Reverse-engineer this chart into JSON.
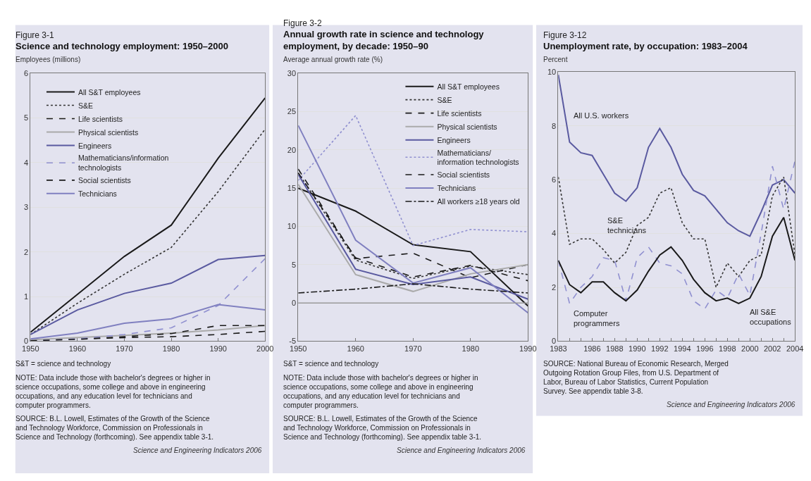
{
  "chart_data": [
    {
      "type": "line",
      "subtitle": "Figure 3-1",
      "title": "Science and technology employment: 1950–2000",
      "ylabel": "Employees (millions)",
      "x": [
        1950,
        1960,
        1970,
        1980,
        1990,
        2000
      ],
      "xlim": [
        1950,
        2000
      ],
      "xticks": [
        1950,
        1960,
        1970,
        1980,
        1990,
        2000
      ],
      "ylim": [
        0,
        6
      ],
      "yticks": [
        0,
        1,
        2,
        3,
        4,
        5,
        6
      ],
      "grid": "y",
      "legend": "top left",
      "marker": "none",
      "series": [
        {
          "name": "All S&T employees",
          "color": "#1a1a1a",
          "line_style": "solid",
          "values": [
            0.2,
            1.05,
            1.9,
            2.6,
            4.1,
            5.45
          ]
        },
        {
          "name": "S&E",
          "color": "#333333",
          "line_style": "dotted",
          "values": [
            0.15,
            0.85,
            1.5,
            2.1,
            3.35,
            4.75
          ]
        },
        {
          "name": "Life scientists",
          "color": "#1a1a1a",
          "line_style": "dashed",
          "values": [
            0.02,
            0.05,
            0.08,
            0.1,
            0.15,
            0.22
          ]
        },
        {
          "name": "Physical scientists",
          "color": "#aaaaaa",
          "line_style": "solid",
          "values": [
            0.03,
            0.08,
            0.13,
            0.18,
            0.25,
            0.35
          ]
        },
        {
          "name": "Engineers",
          "color": "#5a5aa0",
          "line_style": "solid",
          "values": [
            0.15,
            0.7,
            1.07,
            1.3,
            1.83,
            1.92
          ]
        },
        {
          "name": "Mathematicians/information technologists",
          "color": "#9090d0",
          "line_style": "dashed",
          "values": [
            0.01,
            0.05,
            0.15,
            0.3,
            0.8,
            1.85
          ]
        },
        {
          "name": "Social scientists",
          "color": "#1a1a1a",
          "line_style": "dashed",
          "values": [
            0.01,
            0.04,
            0.1,
            0.17,
            0.35,
            0.35
          ]
        },
        {
          "name": "Technicians",
          "color": "#8080c0",
          "line_style": "solid",
          "values": [
            0.05,
            0.18,
            0.4,
            0.5,
            0.82,
            0.7
          ]
        }
      ],
      "annotations": [
        "S&T = science and technology",
        "NOTE: Data include those with bachelor's degrees or higher in science occupations, some college and above in engineering occupations, and any education level for technicians and computer programmers.",
        "SOURCE: B.L. Lowell, Estimates of the Growth of the Science and Technology Workforce, Commission on Professionals in Science and Technology (forthcoming). See appendix table 3-1.",
        "Science and Engineering Indicators 2006"
      ]
    },
    {
      "type": "line",
      "subtitle": "Figure 3-2",
      "title": "Annual growth rate in science and technology employment, by decade: 1950–90",
      "ylabel": "Average annual growth rate (%)",
      "x": [
        1950,
        1960,
        1970,
        1980,
        1990
      ],
      "xlim": [
        1950,
        1990
      ],
      "xticks": [
        1950,
        1960,
        1970,
        1980,
        1990
      ],
      "ylim": [
        -5,
        30
      ],
      "yticks": [
        -5,
        0,
        5,
        10,
        15,
        20,
        25,
        30
      ],
      "grid": "y",
      "legend": "top right",
      "marker": "none",
      "ref_lines": [
        {
          "axis": "y",
          "value": 0,
          "label": null,
          "color": "#999999"
        }
      ],
      "series": [
        {
          "name": "All S&T employees",
          "color": "#1a1a1a",
          "line_style": "solid",
          "values": [
            15,
            12,
            7.6,
            6.7,
            -0.4
          ]
        },
        {
          "name": "S&E",
          "color": "#333333",
          "line_style": "dotted",
          "values": [
            17,
            5.6,
            3.2,
            4.8,
            3.7
          ]
        },
        {
          "name": "Life scientists",
          "color": "#1a1a1a",
          "line_style": "dashed",
          "values": [
            17.5,
            5.8,
            6.5,
            3.3,
            5
          ]
        },
        {
          "name": "Physical scientists",
          "color": "#aaaaaa",
          "line_style": "solid",
          "values": [
            15.5,
            3.7,
            1.5,
            3.8,
            5
          ]
        },
        {
          "name": "Engineers",
          "color": "#5a5aa0",
          "line_style": "solid",
          "values": [
            16.8,
            4.4,
            2.4,
            3.4,
            0.5
          ]
        },
        {
          "name": "Mathematicians/ information technologists",
          "color": "#9090d0",
          "line_style": "dotted",
          "values": [
            16,
            24.5,
            7.5,
            9.6,
            9.3
          ]
        },
        {
          "name": "Social scientists",
          "color": "#1a1a1a",
          "line_style": "dashed",
          "values": [
            17,
            5.9,
            3.4,
            4.9,
            2.9
          ]
        },
        {
          "name": "Technicians",
          "color": "#8080c0",
          "line_style": "solid",
          "values": [
            23.2,
            8.2,
            2.6,
            4.6,
            -1.3
          ]
        },
        {
          "name": "All workers ≥18 years old",
          "color": "#1a1a1a",
          "line_style": "dashdot",
          "values": [
            1.3,
            1.8,
            2.5,
            1.8,
            1.3
          ]
        }
      ],
      "annotations": [
        "S&T = science and technology",
        "NOTE: Data include those with bachelor's degrees or higher in science occupations, some college and above in engineering occupations, and any education level for technicians and computer programmers.",
        "SOURCE: B.L. Lowell, Estimates of the Growth of the Science and Technology Workforce, Commission on Professionals in Science and Technology (forthcoming). See appendix table 3-1.",
        "Science and Engineering Indicators 2006"
      ]
    },
    {
      "type": "line",
      "subtitle": "Figure 3-12",
      "title": "Unemployment rate, by occupation: 1983–2004",
      "ylabel": "Percent",
      "x": [
        1983,
        1984,
        1985,
        1986,
        1987,
        1988,
        1989,
        1990,
        1991,
        1992,
        1993,
        1994,
        1995,
        1996,
        1997,
        1998,
        1999,
        2000,
        2001,
        2002,
        2003,
        2004
      ],
      "xlim": [
        1983,
        2004
      ],
      "xticks": [
        1983,
        {
          "value": 1984,
          "label": null
        },
        {
          "value": 1985,
          "label": null
        },
        1986,
        {
          "value": 1987,
          "label": null
        },
        1988,
        {
          "value": 1989,
          "label": null
        },
        1990,
        {
          "value": 1991,
          "label": null
        },
        1992,
        {
          "value": 1993,
          "label": null
        },
        1994,
        {
          "value": 1995,
          "label": null
        },
        1996,
        {
          "value": 1997,
          "label": null
        },
        1998,
        {
          "value": 1999,
          "label": null
        },
        2000,
        {
          "value": 2001,
          "label": null
        },
        2002,
        {
          "value": 2003,
          "label": null
        },
        2004
      ],
      "ylim": [
        0,
        10
      ],
      "yticks": [
        0,
        2,
        4,
        6,
        8,
        10
      ],
      "grid": "y",
      "legend": false,
      "marker": "none",
      "series": [
        {
          "name": "All U.S. workers",
          "color": "#5a5aa0",
          "line_style": "solid",
          "values": [
            9.9,
            7.4,
            7.0,
            6.9,
            6.2,
            5.5,
            5.2,
            5.7,
            7.2,
            7.9,
            7.2,
            6.2,
            5.6,
            5.4,
            4.9,
            4.4,
            4.1,
            3.9,
            4.8,
            5.8,
            6.0,
            5.5
          ]
        },
        {
          "name": "S&E technicians",
          "color": "#333333",
          "line_style": "dotted",
          "values": [
            6.1,
            3.6,
            3.8,
            3.8,
            3.4,
            2.9,
            3.3,
            4.3,
            4.6,
            5.5,
            5.7,
            4.4,
            3.8,
            3.8,
            2.0,
            2.9,
            2.4,
            3.0,
            3.2,
            5.4,
            6.1,
            3.2
          ]
        },
        {
          "name": "Computer programmers",
          "color": "#9090d0",
          "line_style": "dashed",
          "values": [
            3.0,
            1.4,
            2.0,
            2.4,
            3.1,
            3.0,
            1.5,
            3.1,
            3.5,
            2.9,
            2.8,
            2.5,
            1.5,
            1.2,
            1.9,
            1.6,
            2.5,
            1.7,
            4.0,
            6.5,
            4.9,
            6.7
          ]
        },
        {
          "name": "All S&E occupations",
          "color": "#1a1a1a",
          "line_style": "solid",
          "values": [
            3.0,
            2.1,
            1.8,
            2.2,
            2.2,
            1.8,
            1.5,
            1.9,
            2.6,
            3.2,
            3.5,
            3.0,
            2.3,
            1.8,
            1.5,
            1.6,
            1.4,
            1.6,
            2.4,
            3.9,
            4.6,
            3.0
          ]
        }
      ],
      "annotations": [
        "SOURCE: National Bureau of Economic Research, Merged Outgoing Rotation Group Files, from U.S. Department of Labor, Bureau of Labor Statistics, Current Population Survey. See appendix table 3-8.",
        "Science and Engineering Indicators 2006"
      ]
    }
  ]
}
